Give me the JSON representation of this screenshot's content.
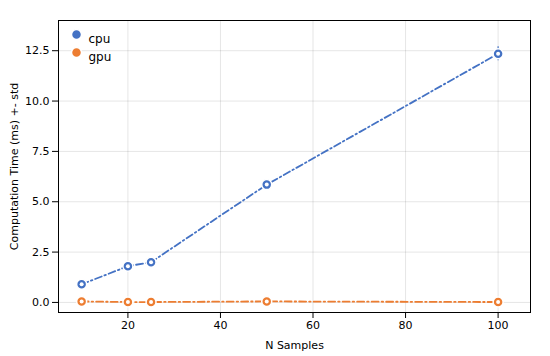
{
  "chart_data": {
    "type": "line",
    "xlabel": "N Samples",
    "ylabel": "Computation Time (ms) +- std",
    "x": [
      10,
      20,
      25,
      50,
      100
    ],
    "series": [
      {
        "name": "cpu",
        "color": "#4472C4",
        "marker": "circle",
        "line_style": "dashdot",
        "values": [
          0.9,
          1.8,
          2.0,
          5.85,
          12.35
        ],
        "yerr": [
          0.12,
          0.18,
          0.18,
          0.22,
          0.35
        ]
      },
      {
        "name": "gpu",
        "color": "#ED7D31",
        "marker": "circle",
        "line_style": "dashdot",
        "values": [
          0.05,
          0.02,
          0.02,
          0.05,
          0.02
        ],
        "yerr": [
          0.07,
          0.07,
          0.06,
          0.07,
          0.07
        ]
      }
    ],
    "xlim": [
      5,
      107
    ],
    "ylim": [
      -0.5,
      14.0
    ],
    "xticks": [
      20,
      40,
      60,
      80,
      100
    ],
    "yticks": [
      {
        "value": 0,
        "label": "0.0"
      },
      2.5,
      {
        "value": 5,
        "label": "5.0"
      },
      7.5,
      {
        "value": 10,
        "label": "10.0"
      },
      12.5
    ],
    "grid": true,
    "legend": "upper left"
  }
}
